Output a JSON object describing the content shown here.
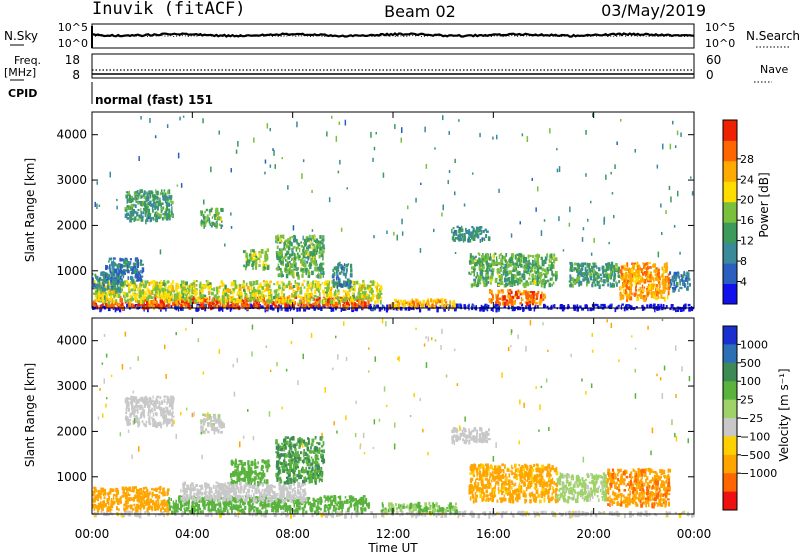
{
  "header": {
    "site": "Inuvik (fitACF)",
    "beam": "Beam 02",
    "date": "03/May/2019"
  },
  "top_panels": {
    "nsky": {
      "left_label": "N.Sky",
      "right_label": "N.Search",
      "left_ticks": [
        "10^5",
        "10^0"
      ],
      "right_ticks": [
        "10^5",
        "10^0"
      ]
    },
    "freq": {
      "left_label": "Freq.",
      "left_unit": "[MHz]",
      "left_ticks": [
        "18",
        "8"
      ],
      "right_label": "Nave",
      "right_ticks": [
        "60",
        "0"
      ]
    },
    "cpid": {
      "label": "CPID",
      "value": "normal (fast) 151"
    }
  },
  "chart_data": [
    {
      "type": "heatmap",
      "title": "",
      "xlabel": "",
      "ylabel": "Slant Range [km]",
      "x_ticks": [
        "00:00",
        "04:00",
        "08:00",
        "12:00",
        "16:00",
        "20:00",
        "00:00"
      ],
      "xlim_hours": [
        0,
        24
      ],
      "ylim_km": [
        180,
        4500
      ],
      "y_ticks": [
        1000,
        2000,
        3000,
        4000
      ],
      "colorbar": {
        "label": "Power [dB]",
        "ticks": [
          4,
          8,
          12,
          16,
          20,
          24,
          28
        ],
        "range": [
          0,
          32
        ],
        "colors": [
          "#1111ee",
          "#2a5fc0",
          "#3a8a9a",
          "#3c9a5c",
          "#7bc03c",
          "#ffdd00",
          "#ffaa00",
          "#ff6600",
          "#ee2200"
        ]
      },
      "grid": false,
      "regions": [
        {
          "t0": 0.0,
          "t1": 24.0,
          "r0": 180,
          "r1": 280,
          "v": 0.3
        },
        {
          "t0": 0.0,
          "t1": 11.0,
          "r0": 230,
          "r1": 450,
          "v": 28
        },
        {
          "t0": 0.0,
          "t1": 11.5,
          "r0": 350,
          "r1": 800,
          "v": 18
        },
        {
          "t0": 0.0,
          "t1": 1.2,
          "r0": 600,
          "r1": 1000,
          "v": 10
        },
        {
          "t0": 1.3,
          "t1": 3.2,
          "r0": 2150,
          "r1": 2800,
          "v": 12
        },
        {
          "t0": 0.5,
          "t1": 2.0,
          "r0": 800,
          "r1": 1300,
          "v": 8
        },
        {
          "t0": 4.3,
          "t1": 5.2,
          "r0": 2000,
          "r1": 2400,
          "v": 14
        },
        {
          "t0": 6.0,
          "t1": 7.0,
          "r0": 1100,
          "r1": 1500,
          "v": 16
        },
        {
          "t0": 7.3,
          "t1": 9.2,
          "r0": 900,
          "r1": 1800,
          "v": 14
        },
        {
          "t0": 9.5,
          "t1": 10.3,
          "r0": 700,
          "r1": 1200,
          "v": 10
        },
        {
          "t0": 11.7,
          "t1": 14.5,
          "r0": 230,
          "r1": 400,
          "v": 22
        },
        {
          "t0": 14.3,
          "t1": 15.8,
          "r0": 1700,
          "r1": 2000,
          "v": 10
        },
        {
          "t0": 15.8,
          "t1": 18.0,
          "r0": 300,
          "r1": 600,
          "v": 26
        },
        {
          "t0": 15.0,
          "t1": 18.5,
          "r0": 700,
          "r1": 1400,
          "v": 14
        },
        {
          "t0": 19.0,
          "t1": 21.0,
          "r0": 700,
          "r1": 1200,
          "v": 12
        },
        {
          "t0": 21.0,
          "t1": 23.0,
          "r0": 400,
          "r1": 1200,
          "v": 24
        },
        {
          "t0": 23.0,
          "t1": 23.8,
          "r0": 600,
          "r1": 1000,
          "v": 8
        }
      ]
    },
    {
      "type": "heatmap",
      "title": "",
      "xlabel": "Time UT",
      "ylabel": "Slant Range [km]",
      "x_ticks": [
        "00:00",
        "04:00",
        "08:00",
        "12:00",
        "16:00",
        "20:00",
        "00:00"
      ],
      "xlim_hours": [
        0,
        24
      ],
      "ylim_km": [
        180,
        4500
      ],
      "y_ticks": [
        1000,
        2000,
        3000,
        4000
      ],
      "colorbar": {
        "label": "Velocity [m s⁻¹]",
        "ticks": [
          "1000",
          "500",
          "100",
          "25",
          "−25",
          "−100",
          "−500",
          "−1000"
        ],
        "colors": [
          "#1a2fd0",
          "#2d6fb5",
          "#3e8a55",
          "#59b33d",
          "#9fd36a",
          "#c8c8c8",
          "#ffd000",
          "#ffa500",
          "#ff6600",
          "#ee1111"
        ]
      },
      "grid": false,
      "regions": [
        {
          "t0": 0.0,
          "t1": 24.0,
          "r0": 180,
          "r1": 260,
          "v": -10
        },
        {
          "t0": 0.0,
          "t1": 3.0,
          "r0": 300,
          "r1": 800,
          "v": -200
        },
        {
          "t0": 3.0,
          "t1": 11.0,
          "r0": 250,
          "r1": 600,
          "v": 120
        },
        {
          "t0": 3.5,
          "t1": 8.5,
          "r0": 500,
          "r1": 900,
          "v": 0
        },
        {
          "t0": 1.3,
          "t1": 3.2,
          "r0": 2150,
          "r1": 2800,
          "v": 0
        },
        {
          "t0": 4.3,
          "t1": 5.2,
          "r0": 2000,
          "r1": 2400,
          "v": 10
        },
        {
          "t0": 7.3,
          "t1": 9.2,
          "r0": 900,
          "r1": 1900,
          "v": 300
        },
        {
          "t0": 5.5,
          "t1": 7.0,
          "r0": 900,
          "r1": 1400,
          "v": 150
        },
        {
          "t0": 11.5,
          "t1": 14.5,
          "r0": 250,
          "r1": 450,
          "v": 60
        },
        {
          "t0": 14.3,
          "t1": 15.8,
          "r0": 1800,
          "r1": 2100,
          "v": 0
        },
        {
          "t0": 15.0,
          "t1": 18.5,
          "r0": 500,
          "r1": 1300,
          "v": -80
        },
        {
          "t0": 18.5,
          "t1": 20.5,
          "r0": 500,
          "r1": 1100,
          "v": 40
        },
        {
          "t0": 20.5,
          "t1": 23.0,
          "r0": 400,
          "r1": 1200,
          "v": -250
        }
      ]
    }
  ]
}
